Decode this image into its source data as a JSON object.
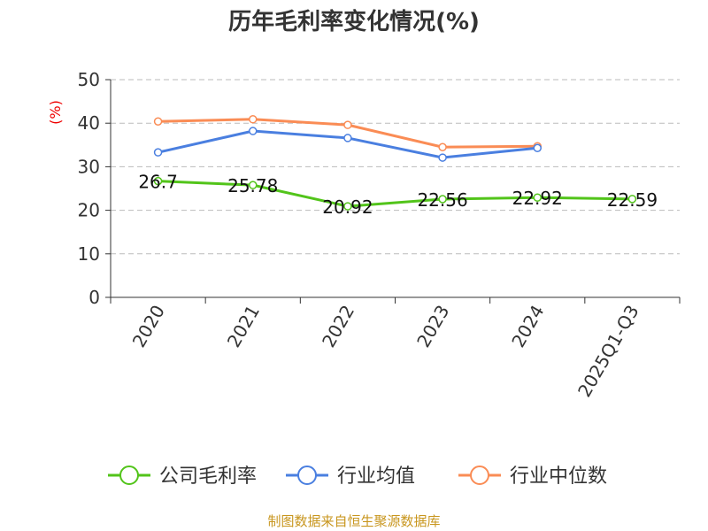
{
  "chart_data": {
    "type": "line",
    "title": "历年毛利率变化情况(%)",
    "ylabel": "(%)",
    "xlabel": "",
    "ylim": [
      0,
      50
    ],
    "yticks": [
      "0",
      "10",
      "20",
      "30",
      "40",
      "50"
    ],
    "grid": true,
    "legend_position": "bottom",
    "categories": [
      "2020",
      "2021",
      "2022",
      "2023",
      "2024",
      "2025Q1-Q3"
    ],
    "series": [
      {
        "name": "公司毛利率",
        "color": "#52c41a",
        "values": [
          26.7,
          25.78,
          20.92,
          22.56,
          22.92,
          22.59
        ],
        "labels": [
          "26.7",
          "25.78",
          "20.92",
          "22.56",
          "22.92",
          "22.59"
        ]
      },
      {
        "name": "行业均值",
        "color": "#4a7fe0",
        "values": [
          33.3,
          38.2,
          36.6,
          32.1,
          34.3,
          null
        ]
      },
      {
        "name": "行业中位数",
        "color": "#fa8c55",
        "values": [
          40.4,
          40.9,
          39.6,
          34.5,
          34.7,
          null
        ]
      }
    ]
  },
  "source": "制图数据来自恒生聚源数据库"
}
